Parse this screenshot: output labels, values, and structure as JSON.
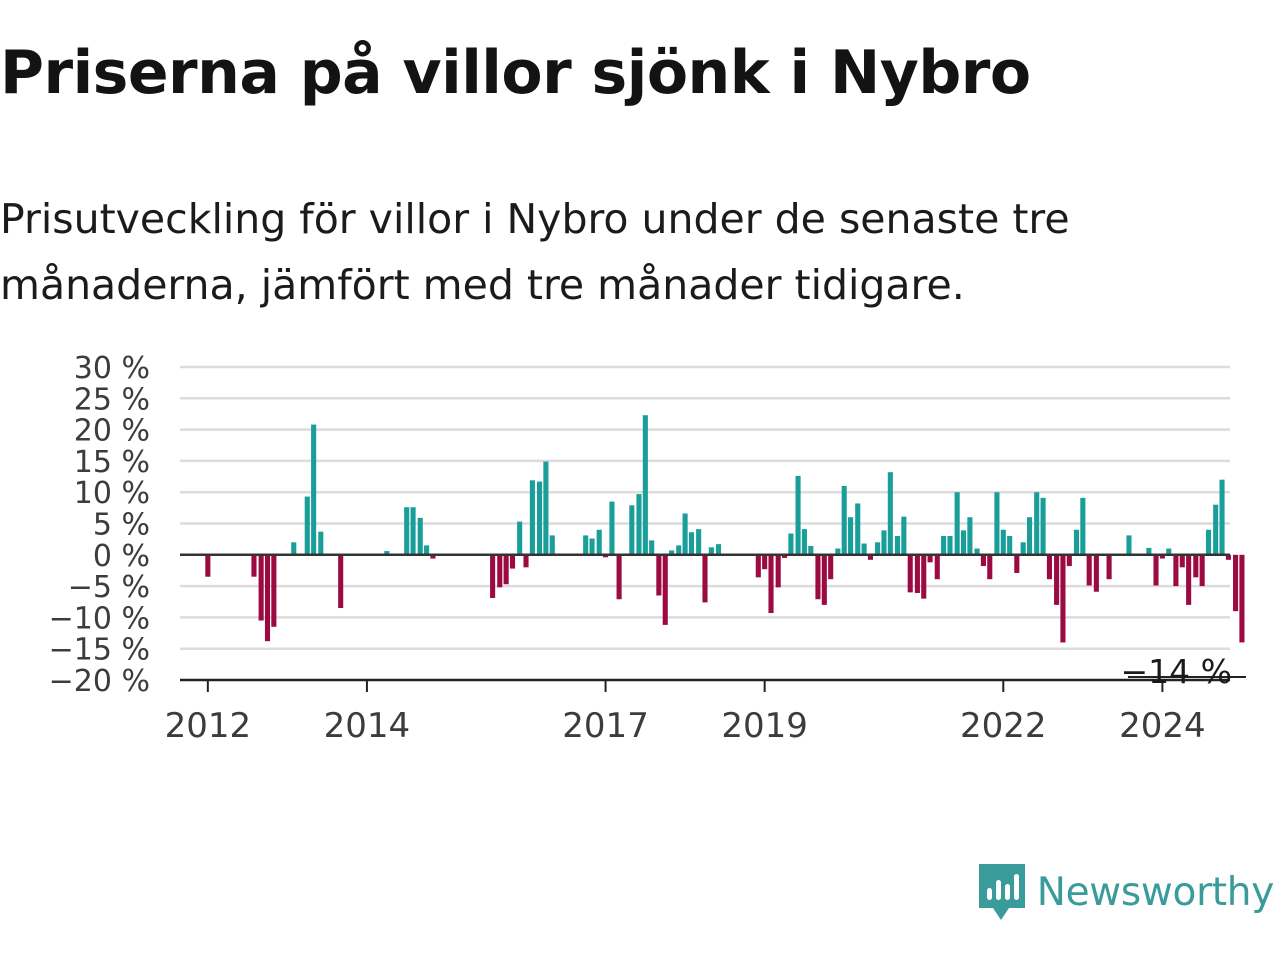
{
  "title": "Priserna på villor sjönk i Nybro",
  "subtitle": "Prisutveckling för villor i Nybro under de senaste tre månaderna, jämfört med tre månader tidigare.",
  "brand": {
    "name": "Newsworthy",
    "color": "#3a9c9a",
    "icon": "newsworthy-logo-icon"
  },
  "chart_data": {
    "type": "bar",
    "ylim": [
      -20,
      30
    ],
    "yticks": [
      30,
      25,
      20,
      15,
      10,
      5,
      0,
      -5,
      -10,
      -15,
      -20
    ],
    "ytick_labels": [
      "30 %",
      "25 %",
      "20 %",
      "15 %",
      "10 %",
      "5 %",
      "0 %",
      "−5 %",
      "−10 %",
      "−15 %",
      "−20 %"
    ],
    "xlim": [
      2011.65,
      2024.85
    ],
    "xticks": [
      2012,
      2014,
      2017,
      2019,
      2022,
      2024
    ],
    "xtick_labels": [
      "2012",
      "2014",
      "2017",
      "2019",
      "2022",
      "2024"
    ],
    "grid": true,
    "positive_color": "#1a9e9a",
    "negative_color": "#9c0a42",
    "last_value_label": "−14 %",
    "x": [
      2012.0,
      2012.58,
      2012.67,
      2012.75,
      2012.83,
      2013.08,
      2013.25,
      2013.33,
      2013.42,
      2013.67,
      2014.25,
      2014.5,
      2014.58,
      2014.67,
      2014.75,
      2014.83,
      2015.58,
      2015.67,
      2015.75,
      2015.83,
      2015.92,
      2016.0,
      2016.08,
      2016.17,
      2016.25,
      2016.33,
      2016.75,
      2016.83,
      2016.92,
      2017.0,
      2017.08,
      2017.17,
      2017.33,
      2017.42,
      2017.5,
      2017.58,
      2017.67,
      2017.75,
      2017.83,
      2017.92,
      2018.0,
      2018.08,
      2018.17,
      2018.25,
      2018.33,
      2018.42,
      2018.92,
      2019.0,
      2019.08,
      2019.17,
      2019.25,
      2019.33,
      2019.42,
      2019.5,
      2019.58,
      2019.67,
      2019.75,
      2019.83,
      2019.92,
      2020.0,
      2020.08,
      2020.17,
      2020.25,
      2020.33,
      2020.42,
      2020.5,
      2020.58,
      2020.67,
      2020.75,
      2020.83,
      2020.92,
      2021.0,
      2021.08,
      2021.17,
      2021.25,
      2021.33,
      2021.42,
      2021.5,
      2021.58,
      2021.67,
      2021.75,
      2021.83,
      2021.92,
      2022.0,
      2022.08,
      2022.17,
      2022.25,
      2022.33,
      2022.42,
      2022.5,
      2022.58,
      2022.67,
      2022.75,
      2022.83,
      2022.92,
      2023.0,
      2023.08,
      2023.17,
      2023.33,
      2023.58,
      2023.83,
      2023.92,
      2024.0,
      2024.08,
      2024.17,
      2024.25,
      2024.33,
      2024.42,
      2024.5,
      2024.58,
      2024.67,
      2024.75,
      2024.83,
      2024.92,
      2025.0
    ],
    "values": [
      -3.5,
      -3.5,
      -10.5,
      -13.8,
      -11.5,
      2.0,
      9.3,
      20.8,
      3.7,
      -8.5,
      0.6,
      7.6,
      7.6,
      5.9,
      1.5,
      -0.6,
      -6.9,
      -5.2,
      -4.7,
      -2.2,
      5.3,
      -2.0,
      11.9,
      11.7,
      14.9,
      3.1,
      3.1,
      2.6,
      4.0,
      -0.4,
      8.5,
      -7.1,
      7.9,
      9.7,
      22.3,
      2.3,
      -6.5,
      -11.2,
      0.7,
      1.5,
      6.6,
      3.6,
      4.1,
      -7.6,
      1.2,
      1.7,
      -3.6,
      -2.3,
      -9.3,
      -5.2,
      -0.5,
      3.4,
      12.6,
      4.1,
      1.4,
      -7.1,
      -8.0,
      -3.9,
      1.0,
      11.0,
      6.0,
      8.2,
      1.8,
      -0.8,
      2.0,
      3.9,
      13.2,
      3.0,
      6.1,
      -6.0,
      -6.1,
      -7.0,
      -1.2,
      -3.9,
      3.0,
      3.0,
      10.0,
      3.9,
      6.0,
      1.0,
      -1.8,
      -3.9,
      10.0,
      4.0,
      3.0,
      -2.9,
      2.0,
      6.0,
      10.0,
      9.1,
      -3.9,
      -8.0,
      -14.0,
      -1.8,
      4.0,
      9.1,
      -4.9,
      -5.9,
      -3.9,
      3.1,
      1.1,
      -4.9,
      -0.6,
      1.0,
      -5.0,
      -2.0,
      -8.0,
      -3.6,
      -5.0,
      4.0,
      8.0,
      12.0,
      -0.8,
      -9.0,
      -14.0
    ]
  }
}
